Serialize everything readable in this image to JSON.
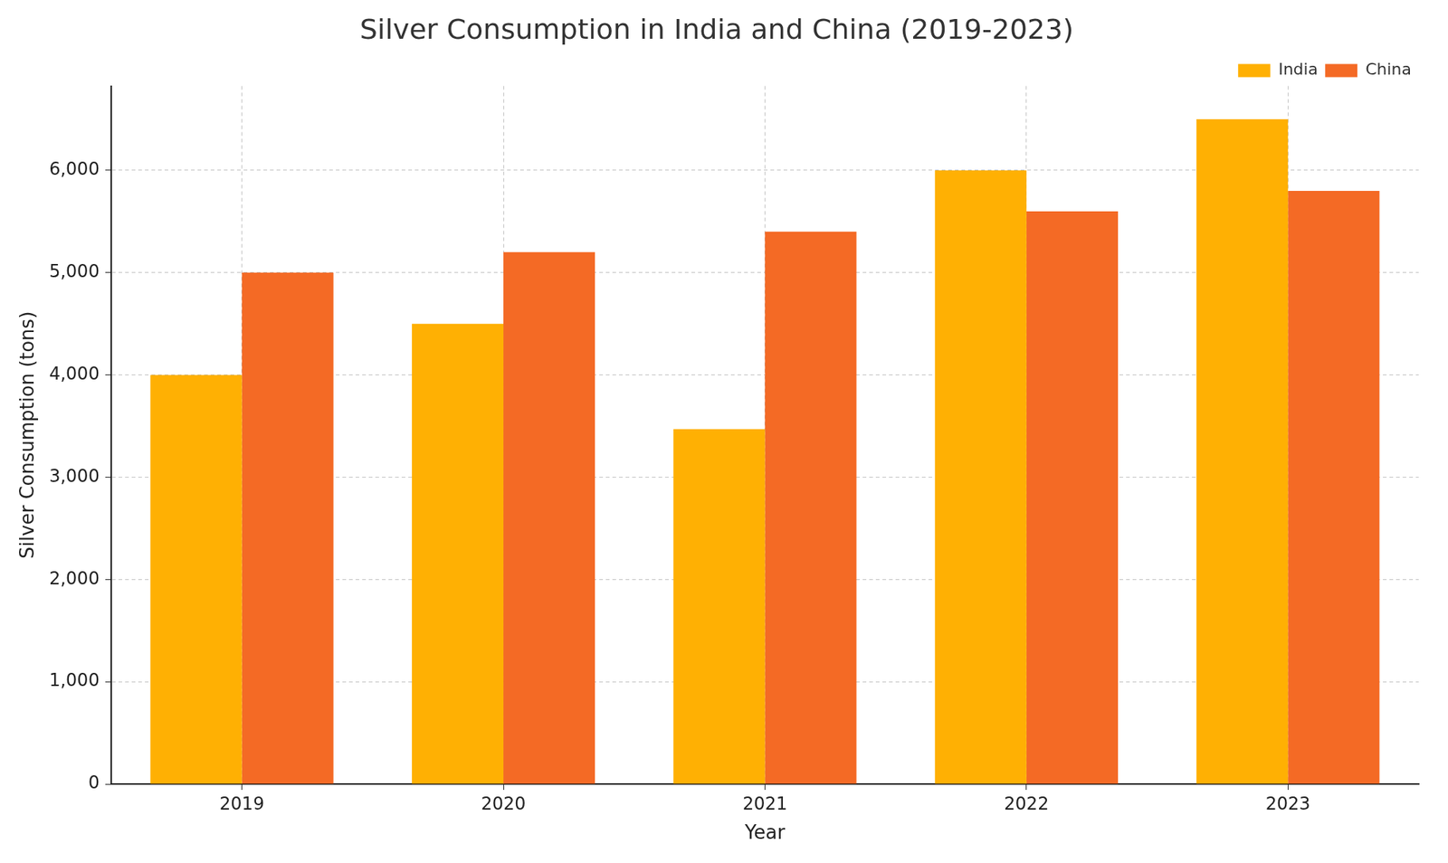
{
  "chart_data": {
    "type": "bar",
    "title": "Silver Consumption in India and China (2019-2023)",
    "x_label": "Year",
    "y_label": "Silver Consumption (tons)",
    "categories": [
      "2019",
      "2020",
      "2021",
      "2022",
      "2023"
    ],
    "series": [
      {
        "name": "India",
        "color": "#ffb003",
        "values": [
          4000,
          4500,
          3470,
          6000,
          6500
        ]
      },
      {
        "name": "China",
        "color": "#f46a25",
        "values": [
          5000,
          5200,
          5400,
          5600,
          5800
        ]
      }
    ],
    "ylim": [
      0,
      6825
    ],
    "yticks": [
      0,
      1000,
      2000,
      3000,
      4000,
      5000,
      6000
    ],
    "grid": true,
    "legend": "upper right"
  }
}
